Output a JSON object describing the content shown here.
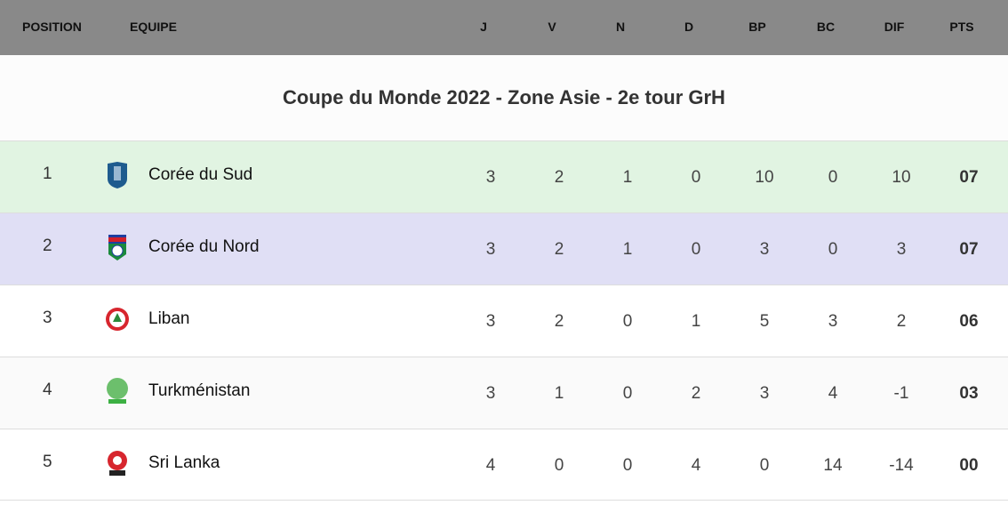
{
  "header": {
    "position": "POSITION",
    "team": "EQUIPE",
    "cols": [
      "J",
      "V",
      "N",
      "D",
      "BP",
      "BC",
      "DIF",
      "PTS"
    ]
  },
  "title": "Coupe du Monde 2022 - Zone Asie - 2e tour GrH",
  "colors": {
    "header_bg": "#898989",
    "row1_bg": "#e1f4e2",
    "row2_bg": "#e0dff5"
  },
  "rows": [
    {
      "pos": "1",
      "team": "Corée du Sud",
      "logo": "korea-republic-crest",
      "stats": [
        "3",
        "2",
        "1",
        "0",
        "10",
        "0",
        "10",
        "07"
      ]
    },
    {
      "pos": "2",
      "team": "Corée du Nord",
      "logo": "korea-dpr-crest",
      "stats": [
        "3",
        "2",
        "1",
        "0",
        "3",
        "0",
        "3",
        "07"
      ]
    },
    {
      "pos": "3",
      "team": "Liban",
      "logo": "lebanon-crest",
      "stats": [
        "3",
        "2",
        "0",
        "1",
        "5",
        "3",
        "2",
        "06"
      ]
    },
    {
      "pos": "4",
      "team": "Turkménistan",
      "logo": "turkmenistan-crest",
      "stats": [
        "3",
        "1",
        "0",
        "2",
        "3",
        "4",
        "-1",
        "03"
      ]
    },
    {
      "pos": "5",
      "team": "Sri Lanka",
      "logo": "sri-lanka-crest",
      "stats": [
        "4",
        "0",
        "0",
        "4",
        "0",
        "14",
        "-14",
        "00"
      ]
    }
  ]
}
